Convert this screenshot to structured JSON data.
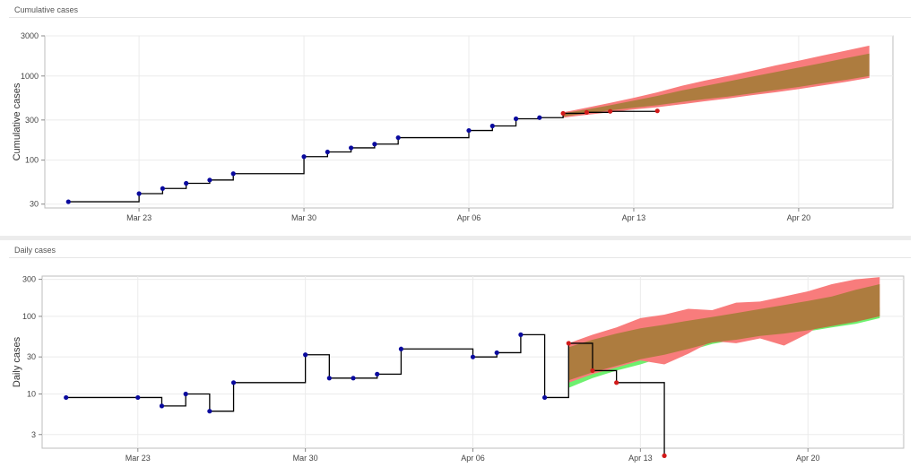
{
  "panels": [
    {
      "header": "Cumulative cases"
    },
    {
      "header": "Daily cases"
    }
  ],
  "chart_data": [
    {
      "type": "line",
      "title": "Cumulative cases",
      "ylabel": "Cumulative cases",
      "xlabel": "",
      "yscale": "log",
      "ylim": [
        27,
        3000
      ],
      "yticks": [
        30,
        100,
        300,
        1000,
        3000
      ],
      "ytick_labels": [
        "30",
        "100",
        "300",
        "1000",
        "3000"
      ],
      "xlim": [
        "2020-03-19",
        "2020-04-24"
      ],
      "xticks": [
        "2020-03-23",
        "2020-03-30",
        "2020-04-06",
        "2020-04-13",
        "2020-04-20"
      ],
      "xtick_labels": [
        "Mar 23",
        "Mar 30",
        "Apr 06",
        "Apr 13",
        "Apr 20"
      ],
      "grid": true,
      "series": [
        {
          "color": "#0a0a9e",
          "style": "step-with-markers",
          "points": [
            [
              "2020-03-20",
              32
            ],
            [
              "2020-03-23",
              40
            ],
            [
              "2020-03-24",
              46
            ],
            [
              "2020-03-25",
              53
            ],
            [
              "2020-03-26",
              58
            ],
            [
              "2020-03-27",
              69
            ],
            [
              "2020-03-30",
              110
            ],
            [
              "2020-03-31",
              125
            ],
            [
              "2020-04-01",
              140
            ],
            [
              "2020-04-02",
              155
            ],
            [
              "2020-04-03",
              185
            ],
            [
              "2020-04-06",
              225
            ],
            [
              "2020-04-07",
              255
            ],
            [
              "2020-04-08",
              310
            ],
            [
              "2020-04-09",
              320
            ]
          ]
        },
        {
          "color": "#d21a1a",
          "style": "step-with-markers",
          "points": [
            [
              "2020-04-10",
              360
            ],
            [
              "2020-04-11",
              370
            ],
            [
              "2020-04-12",
              380
            ],
            [
              "2020-04-14",
              385
            ]
          ]
        },
        {
          "color": "#f87c7c",
          "style": "band",
          "x": [
            "2020-04-10",
            "2020-04-11",
            "2020-04-12",
            "2020-04-13",
            "2020-04-14",
            "2020-04-15",
            "2020-04-16",
            "2020-04-17",
            "2020-04-18",
            "2020-04-19",
            "2020-04-20",
            "2020-04-21",
            "2020-04-22",
            "2020-04-23"
          ],
          "lower": [
            320,
            345,
            370,
            400,
            425,
            460,
            500,
            540,
            590,
            640,
            700,
            770,
            850,
            950
          ],
          "upper": [
            370,
            420,
            480,
            550,
            640,
            760,
            880,
            1000,
            1150,
            1330,
            1520,
            1750,
            2000,
            2300
          ]
        },
        {
          "color": "#ad7c3f",
          "style": "band",
          "x": [
            "2020-04-10",
            "2020-04-11",
            "2020-04-12",
            "2020-04-13",
            "2020-04-14",
            "2020-04-15",
            "2020-04-16",
            "2020-04-17",
            "2020-04-18",
            "2020-04-19",
            "2020-04-20",
            "2020-04-21",
            "2020-04-22",
            "2020-04-23"
          ],
          "lower": [
            330,
            360,
            390,
            420,
            450,
            490,
            530,
            570,
            620,
            680,
            740,
            820,
            900,
            1000
          ],
          "upper": [
            360,
            400,
            450,
            510,
            580,
            670,
            760,
            860,
            980,
            1110,
            1260,
            1430,
            1630,
            1850
          ]
        }
      ]
    },
    {
      "type": "line",
      "title": "Daily cases",
      "ylabel": "Daily cases",
      "xlabel": "",
      "yscale": "log",
      "ylim": [
        2,
        330
      ],
      "yticks": [
        3,
        10,
        30,
        100,
        300
      ],
      "ytick_labels": [
        "3",
        "10",
        "30",
        "100",
        "300"
      ],
      "xlim": [
        "2020-03-19",
        "2020-04-24"
      ],
      "xticks": [
        "2020-03-23",
        "2020-03-30",
        "2020-04-06",
        "2020-04-13",
        "2020-04-20"
      ],
      "xtick_labels": [
        "Mar 23",
        "Mar 30",
        "Apr 06",
        "Apr 13",
        "Apr 20"
      ],
      "grid": true,
      "series": [
        {
          "color": "#0a0a9e",
          "style": "step-with-markers",
          "points": [
            [
              "2020-03-20",
              9
            ],
            [
              "2020-03-23",
              9
            ],
            [
              "2020-03-24",
              7
            ],
            [
              "2020-03-25",
              10
            ],
            [
              "2020-03-26",
              6
            ],
            [
              "2020-03-27",
              14
            ],
            [
              "2020-03-30",
              32
            ],
            [
              "2020-03-31",
              16
            ],
            [
              "2020-04-01",
              16
            ],
            [
              "2020-04-02",
              18
            ],
            [
              "2020-04-03",
              38
            ],
            [
              "2020-04-06",
              30
            ],
            [
              "2020-04-07",
              34
            ],
            [
              "2020-04-08",
              58
            ],
            [
              "2020-04-09",
              9
            ]
          ]
        },
        {
          "color": "#d21a1a",
          "style": "step-with-markers",
          "points": [
            [
              "2020-04-10",
              45
            ],
            [
              "2020-04-11",
              20
            ],
            [
              "2020-04-12",
              14
            ],
            [
              "2020-04-14",
              1.6
            ]
          ]
        },
        {
          "color": "#6ef06e",
          "style": "band",
          "x": [
            "2020-04-10",
            "2020-04-11",
            "2020-04-12",
            "2020-04-13",
            "2020-04-14",
            "2020-04-15",
            "2020-04-16",
            "2020-04-17",
            "2020-04-18",
            "2020-04-19",
            "2020-04-20",
            "2020-04-21",
            "2020-04-22",
            "2020-04-23"
          ],
          "lower": [
            12,
            16,
            20,
            24,
            30,
            36,
            44,
            50,
            56,
            60,
            64,
            72,
            80,
            95
          ],
          "upper": [
            22,
            28,
            34,
            40,
            48,
            56,
            64,
            72,
            80,
            88,
            98,
            108,
            120,
            130
          ]
        },
        {
          "color": "#f87c7c",
          "style": "band",
          "x": [
            "2020-04-10",
            "2020-04-11",
            "2020-04-12",
            "2020-04-13",
            "2020-04-14",
            "2020-04-15",
            "2020-04-16",
            "2020-04-17",
            "2020-04-18",
            "2020-04-19",
            "2020-04-20",
            "2020-04-21",
            "2020-04-22",
            "2020-04-23"
          ],
          "lower": [
            14,
            18,
            22,
            27,
            24,
            33,
            48,
            45,
            52,
            42,
            60,
            98,
            88,
            102
          ],
          "upper": [
            45,
            58,
            72,
            95,
            105,
            125,
            120,
            150,
            155,
            180,
            210,
            260,
            300,
            320
          ]
        },
        {
          "color": "#ad7c3f",
          "style": "band",
          "x": [
            "2020-04-10",
            "2020-04-11",
            "2020-04-12",
            "2020-04-13",
            "2020-04-14",
            "2020-04-15",
            "2020-04-16",
            "2020-04-17",
            "2020-04-18",
            "2020-04-19",
            "2020-04-20",
            "2020-04-21",
            "2020-04-22",
            "2020-04-23"
          ],
          "lower": [
            15,
            19,
            23,
            28,
            32,
            38,
            46,
            50,
            56,
            60,
            66,
            75,
            85,
            100
          ],
          "upper": [
            40,
            50,
            60,
            70,
            78,
            88,
            98,
            110,
            124,
            140,
            158,
            180,
            220,
            260
          ]
        }
      ]
    }
  ]
}
